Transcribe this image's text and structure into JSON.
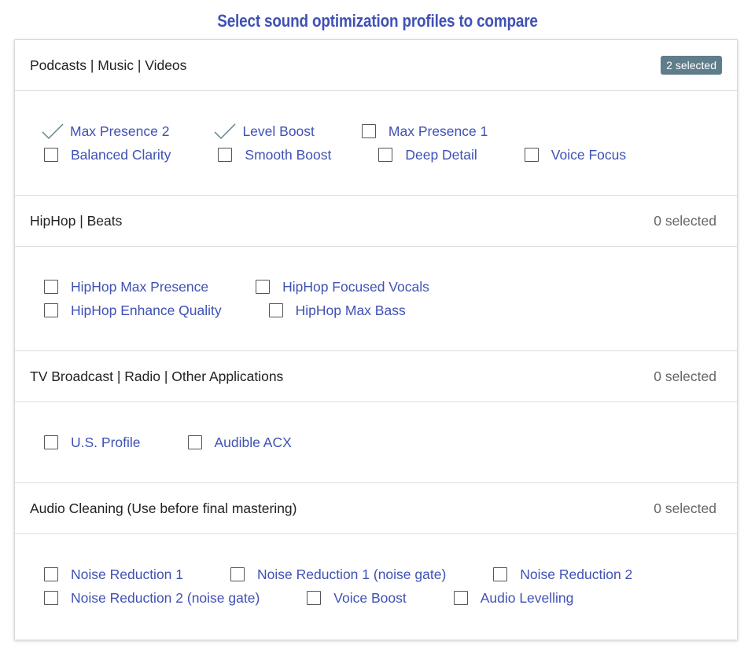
{
  "title": "Select sound optimization profiles to compare",
  "colors": {
    "accent": "#3f51b5",
    "badge": "#607d8b",
    "check": "#5f7d8a"
  },
  "sections": [
    {
      "name": "Podcasts | Music | Videos",
      "count": "2 selected",
      "highlight": true,
      "rows": [
        [
          {
            "label": "Max Presence 2",
            "checked": true
          },
          {
            "label": "Level Boost",
            "checked": true
          },
          {
            "label": "Max Presence 1",
            "checked": false
          }
        ],
        [
          {
            "label": "Balanced Clarity",
            "checked": false
          },
          {
            "label": "Smooth Boost",
            "checked": false
          },
          {
            "label": "Deep Detail",
            "checked": false
          },
          {
            "label": "Voice Focus",
            "checked": false
          }
        ]
      ]
    },
    {
      "name": "HipHop | Beats",
      "count": "0 selected",
      "highlight": false,
      "rows": [
        [
          {
            "label": "HipHop Max Presence",
            "checked": false
          },
          {
            "label": "HipHop Focused Vocals",
            "checked": false
          }
        ],
        [
          {
            "label": "HipHop Enhance Quality",
            "checked": false
          },
          {
            "label": "HipHop Max Bass",
            "checked": false
          }
        ]
      ]
    },
    {
      "name": "TV Broadcast | Radio | Other Applications",
      "count": "0 selected",
      "highlight": false,
      "rows": [
        [
          {
            "label": "U.S. Profile",
            "checked": false
          },
          {
            "label": "Audible ACX",
            "checked": false
          }
        ]
      ]
    },
    {
      "name": "Audio Cleaning (Use before final mastering)",
      "count": "0 selected",
      "highlight": false,
      "rows": [
        [
          {
            "label": "Noise Reduction 1",
            "checked": false
          },
          {
            "label": "Noise Reduction 1 (noise gate)",
            "checked": false
          },
          {
            "label": "Noise Reduction 2",
            "checked": false
          }
        ],
        [
          {
            "label": "Noise Reduction 2 (noise gate)",
            "checked": false
          },
          {
            "label": "Voice Boost",
            "checked": false
          },
          {
            "label": "Audio Levelling",
            "checked": false
          }
        ]
      ]
    }
  ]
}
